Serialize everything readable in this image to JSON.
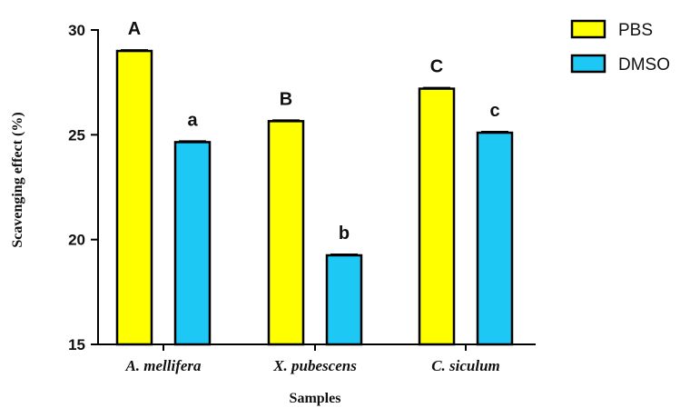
{
  "chart_data": {
    "type": "bar",
    "title": "",
    "xlabel": "Samples",
    "ylabel": "Scavenging effect (%)",
    "ylim": [
      15,
      30
    ],
    "yticks": [
      15,
      20,
      25,
      30
    ],
    "categories": [
      "A. mellifera",
      "X. pubescens",
      "C. siculum"
    ],
    "series": [
      {
        "name": "PBS",
        "color": "#ffff00",
        "values": [
          29.0,
          25.65,
          27.2
        ],
        "labels": [
          "A",
          "B",
          "C"
        ]
      },
      {
        "name": "DMSO",
        "color": "#1ec8f5",
        "values": [
          24.65,
          19.25,
          25.1
        ],
        "labels": [
          "a",
          "b",
          "c"
        ]
      }
    ],
    "legend_position": "top-right",
    "grid": false
  }
}
